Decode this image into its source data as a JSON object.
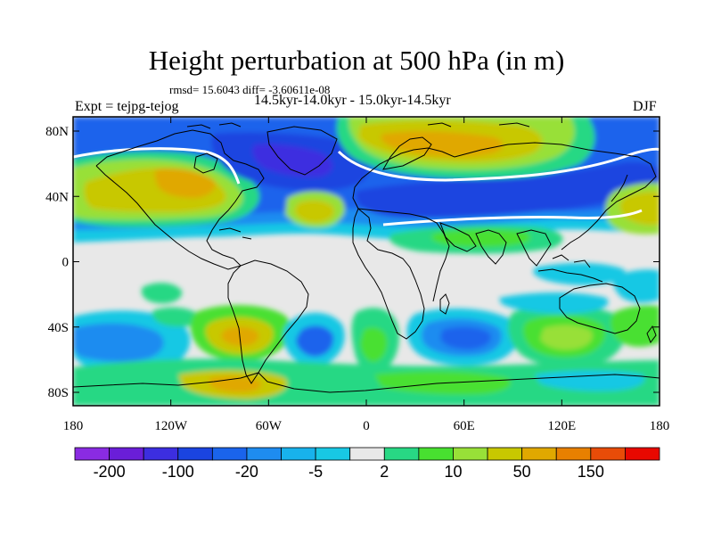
{
  "title": "Height perturbation at 500 hPa (in m)",
  "stats_line": "rmsd= 15.6043 diff= -3.60611e-08",
  "periods_line": "14.5kyr-14.0kyr - 15.0kyr-14.5kyr",
  "experiment_label": "Expt = tejpg-tejog",
  "season_label": "DJF",
  "map": {
    "y_ticks": [
      "80N",
      "40N",
      "0",
      "40S",
      "80S"
    ],
    "x_ticks": [
      "180",
      "120W",
      "60W",
      "0",
      "60E",
      "120E",
      "180"
    ],
    "background_color": "#e8e8e8"
  },
  "colorbar": {
    "colors": [
      "#8a2be2",
      "#6a1ed8",
      "#3c2ee0",
      "#1a44e0",
      "#1a64ec",
      "#1e8cf0",
      "#18b2ec",
      "#18c8e4",
      "#e8e8e8",
      "#28d884",
      "#48e030",
      "#98e038",
      "#c8c800",
      "#e0a800",
      "#e88000",
      "#e84c08",
      "#e80800"
    ],
    "tick_labels": [
      "-200",
      "-100",
      "-20",
      "-5",
      "2",
      "10",
      "50",
      "150"
    ]
  }
}
